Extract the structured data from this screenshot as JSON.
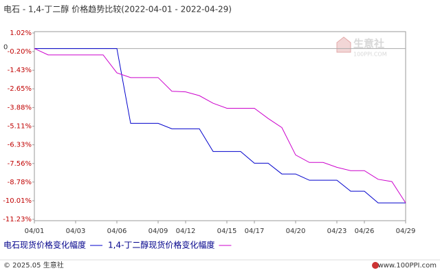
{
  "chart_data": {
    "type": "line",
    "title": "电石 - 1,4-丁二醇 价格趋势比较(2022-04-01 - 2022-04-29)",
    "categories": [
      "04/01",
      null,
      null,
      "04/03",
      null,
      null,
      "04/06",
      null,
      null,
      "04/09",
      null,
      "04/12",
      null,
      null,
      "04/15",
      null,
      "04/17",
      null,
      null,
      "04/20",
      null,
      null,
      "04/23",
      null,
      "04/26",
      null,
      null,
      "04/29"
    ],
    "series": [
      {
        "name": "电石现货价格变化幅度",
        "color": "#0000cc",
        "values": [
          0,
          0,
          0,
          0,
          0,
          0,
          0,
          -4.92,
          -4.92,
          -4.92,
          -5.28,
          -5.28,
          -5.28,
          -6.77,
          -6.77,
          -6.77,
          -7.54,
          -7.54,
          -8.25,
          -8.25,
          -8.66,
          -8.66,
          -8.66,
          -9.38,
          -9.38,
          -10.15,
          -10.15,
          -10.15
        ]
      },
      {
        "name": "1,4-丁二醇现货价格变化幅度",
        "color": "#cc00cc",
        "values": [
          0,
          -0.42,
          -0.42,
          -0.42,
          -0.42,
          -0.42,
          -1.6,
          -1.91,
          -1.91,
          -1.91,
          -2.81,
          -2.85,
          -3.1,
          -3.6,
          -3.93,
          -3.93,
          -3.93,
          -4.6,
          -5.2,
          -7.0,
          -7.49,
          -7.49,
          -7.81,
          -8.03,
          -8.03,
          -8.6,
          -8.75,
          -10.15
        ]
      }
    ],
    "ylim": [
      -11.23,
      1.02
    ],
    "yticks": [
      {
        "value": 1.02,
        "label": "1.02%"
      },
      {
        "value": -0.2,
        "label": "-0.20%"
      },
      {
        "value": -1.43,
        "label": "-1.43%"
      },
      {
        "value": -2.65,
        "label": "-2.65%"
      },
      {
        "value": -3.88,
        "label": "-3.88%"
      },
      {
        "value": -5.11,
        "label": "-5.11%"
      },
      {
        "value": -6.33,
        "label": "-6.33%"
      },
      {
        "value": -7.56,
        "label": "-7.56%"
      },
      {
        "value": -8.78,
        "label": "-8.78%"
      },
      {
        "value": -10.01,
        "label": "-10.01%"
      },
      {
        "value": -11.23,
        "label": "-11.23%"
      }
    ],
    "zero_marker": 0,
    "grid": false,
    "watermark": {
      "name": "生意社",
      "site": "100PPI.COM"
    },
    "footer": {
      "copyright": "© 2025.05 生意社",
      "site": "www.100PPI.com"
    }
  }
}
